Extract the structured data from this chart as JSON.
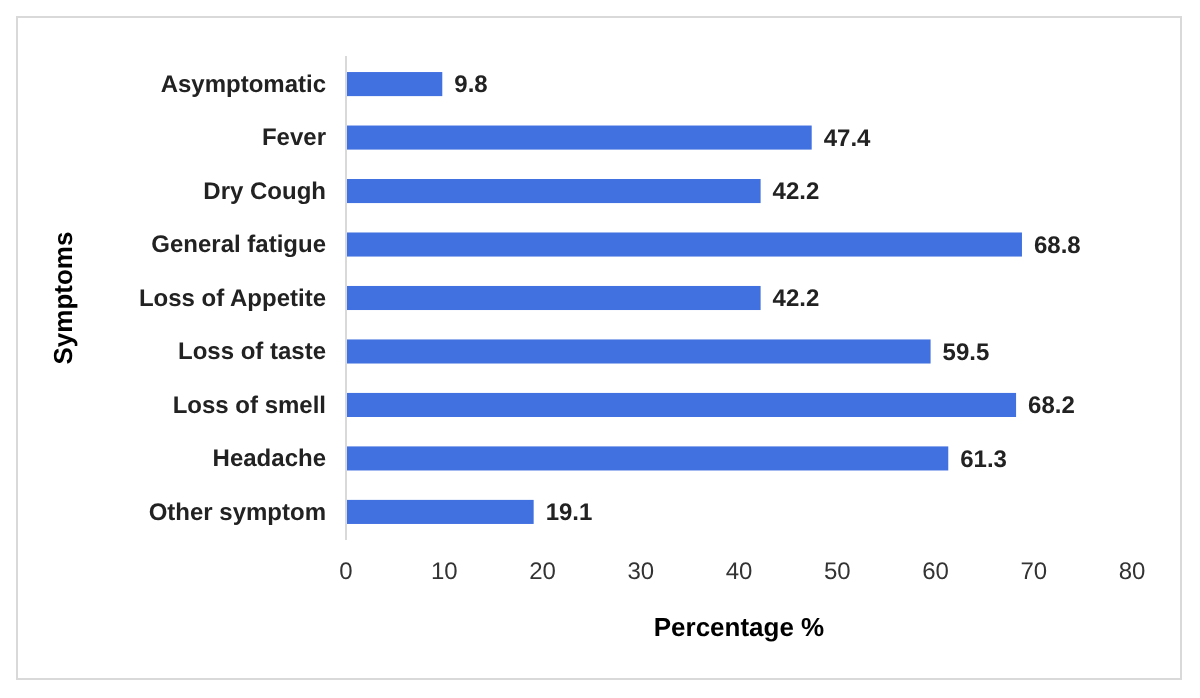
{
  "chart_data": {
    "type": "bar",
    "orientation": "horizontal",
    "xlabel": "Percentage %",
    "ylabel": "Symptoms",
    "categories": [
      "Asymptomatic",
      "Fever",
      "Dry Cough",
      "General fatigue",
      "Loss of Appetite",
      "Loss of taste",
      "Loss of smell",
      "Headache",
      "Other symptom"
    ],
    "values": [
      9.8,
      47.4,
      42.2,
      68.8,
      42.2,
      59.5,
      68.2,
      61.3,
      19.1
    ],
    "color": "#4170e0",
    "xlim": [
      0,
      80
    ],
    "xticks": [
      0,
      10,
      20,
      30,
      40,
      50,
      60,
      70,
      80
    ],
    "data_labels": true,
    "grid": false
  }
}
